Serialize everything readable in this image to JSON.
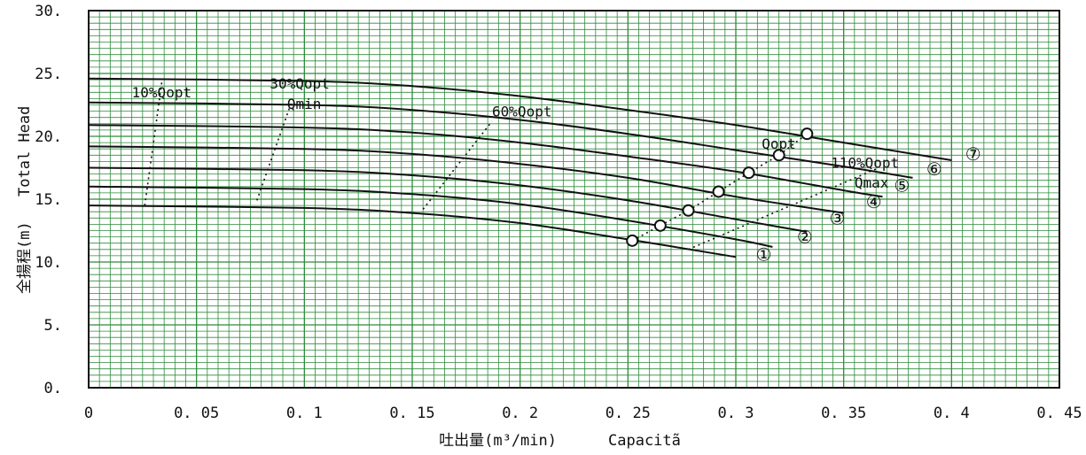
{
  "chart_data": {
    "type": "line",
    "title": "",
    "xlabel_jp": "吐出量(m³/min)",
    "xlabel_en": "Capacitã",
    "ylabel_jp": "全揚程(m)",
    "ylabel_en": "Total Head",
    "xlim": [
      0,
      0.45
    ],
    "ylim": [
      0,
      30
    ],
    "x_ticks": [
      0,
      0.05,
      0.1,
      0.15,
      0.2,
      0.25,
      0.3,
      0.35,
      0.4,
      0.45
    ],
    "x_tick_labels": [
      "0",
      "0. 05",
      "0. 1",
      "0. 15",
      "0. 2",
      "0. 25",
      "0. 3",
      "0. 35",
      "0. 4",
      "0. 45"
    ],
    "y_ticks": [
      0,
      5,
      10,
      15,
      20,
      25,
      30
    ],
    "y_tick_labels": [
      "0.",
      "5.",
      "10.",
      "15.",
      "20.",
      "25.",
      "30."
    ],
    "grid": true,
    "grid_color": "#2e8b3a",
    "line_color": "#111111",
    "series": [
      {
        "name": "①",
        "points": [
          [
            0,
            14.5
          ],
          [
            0.1,
            14.3
          ],
          [
            0.15,
            13.9
          ],
          [
            0.2,
            13.1
          ],
          [
            0.25,
            11.8
          ],
          [
            0.3,
            10.4
          ]
        ],
        "opt_point": [
          0.252,
          11.7
        ]
      },
      {
        "name": "②",
        "points": [
          [
            0,
            16.0
          ],
          [
            0.1,
            15.8
          ],
          [
            0.15,
            15.4
          ],
          [
            0.2,
            14.6
          ],
          [
            0.25,
            13.3
          ],
          [
            0.3,
            11.8
          ],
          [
            0.317,
            11.2
          ]
        ],
        "opt_point": [
          0.265,
          12.9
        ]
      },
      {
        "name": "③",
        "points": [
          [
            0,
            17.5
          ],
          [
            0.1,
            17.3
          ],
          [
            0.15,
            16.9
          ],
          [
            0.2,
            16.1
          ],
          [
            0.25,
            14.9
          ],
          [
            0.3,
            13.4
          ],
          [
            0.333,
            12.4
          ]
        ],
        "opt_point": [
          0.278,
          14.1
        ]
      },
      {
        "name": "④",
        "points": [
          [
            0,
            19.2
          ],
          [
            0.1,
            19.0
          ],
          [
            0.15,
            18.6
          ],
          [
            0.2,
            17.8
          ],
          [
            0.25,
            16.7
          ],
          [
            0.3,
            15.2
          ],
          [
            0.35,
            13.9
          ]
        ],
        "opt_point": [
          0.292,
          15.6
        ]
      },
      {
        "name": "⑤",
        "points": [
          [
            0,
            20.9
          ],
          [
            0.1,
            20.7
          ],
          [
            0.15,
            20.3
          ],
          [
            0.2,
            19.5
          ],
          [
            0.25,
            18.4
          ],
          [
            0.3,
            17.2
          ],
          [
            0.35,
            15.7
          ],
          [
            0.368,
            15.2
          ]
        ],
        "opt_point": [
          0.306,
          17.1
        ]
      },
      {
        "name": "⑥",
        "points": [
          [
            0,
            22.7
          ],
          [
            0.1,
            22.5
          ],
          [
            0.15,
            22.1
          ],
          [
            0.2,
            21.3
          ],
          [
            0.25,
            20.2
          ],
          [
            0.3,
            18.9
          ],
          [
            0.35,
            17.6
          ],
          [
            0.382,
            16.7
          ]
        ],
        "opt_point": [
          0.32,
          18.5
        ]
      },
      {
        "name": "⑦",
        "points": [
          [
            0,
            24.6
          ],
          [
            0.1,
            24.4
          ],
          [
            0.15,
            24.0
          ],
          [
            0.2,
            23.2
          ],
          [
            0.25,
            22.1
          ],
          [
            0.3,
            20.9
          ],
          [
            0.35,
            19.5
          ],
          [
            0.4,
            18.1
          ]
        ],
        "opt_point": [
          0.333,
          20.2
        ]
      }
    ],
    "curve_label_positions": [
      [
        0.313,
        10.1
      ],
      [
        0.332,
        11.5
      ],
      [
        0.347,
        13.0
      ],
      [
        0.364,
        14.3
      ],
      [
        0.377,
        15.6
      ],
      [
        0.392,
        16.9
      ],
      [
        0.41,
        18.1
      ]
    ],
    "guides": [
      {
        "name": "10%Qopt",
        "points": [
          [
            0.026,
            14.5
          ],
          [
            0.034,
            24.4
          ]
        ]
      },
      {
        "name": "30%Qopt",
        "points": [
          [
            0.078,
            14.9
          ],
          [
            0.094,
            22.7
          ]
        ]
      },
      {
        "name": "60%Qopt",
        "points": [
          [
            0.155,
            14.2
          ],
          [
            0.187,
            21.2
          ]
        ]
      },
      {
        "name": "Qopt",
        "points": [
          [
            0.252,
            11.7
          ],
          [
            0.265,
            12.9
          ],
          [
            0.278,
            14.1
          ],
          [
            0.292,
            15.6
          ],
          [
            0.306,
            17.1
          ],
          [
            0.32,
            18.5
          ],
          [
            0.333,
            20.2
          ]
        ]
      },
      {
        "name": "110%Qopt",
        "points": [
          [
            0.278,
            11.0
          ],
          [
            0.365,
            17.4
          ]
        ]
      }
    ],
    "annotations": [
      {
        "text": "10%Qopt",
        "x": 0.02,
        "y": 23.1
      },
      {
        "text": "30%Qopt",
        "x": 0.084,
        "y": 23.8
      },
      {
        "text": "Qmin",
        "x": 0.092,
        "y": 22.2
      },
      {
        "text": "60%Qopt",
        "x": 0.187,
        "y": 21.6
      },
      {
        "text": "Qopt",
        "x": 0.312,
        "y": 19.0
      },
      {
        "text": "110%Qopt",
        "x": 0.344,
        "y": 17.5
      },
      {
        "text": "Qmax",
        "x": 0.355,
        "y": 15.9
      }
    ]
  }
}
